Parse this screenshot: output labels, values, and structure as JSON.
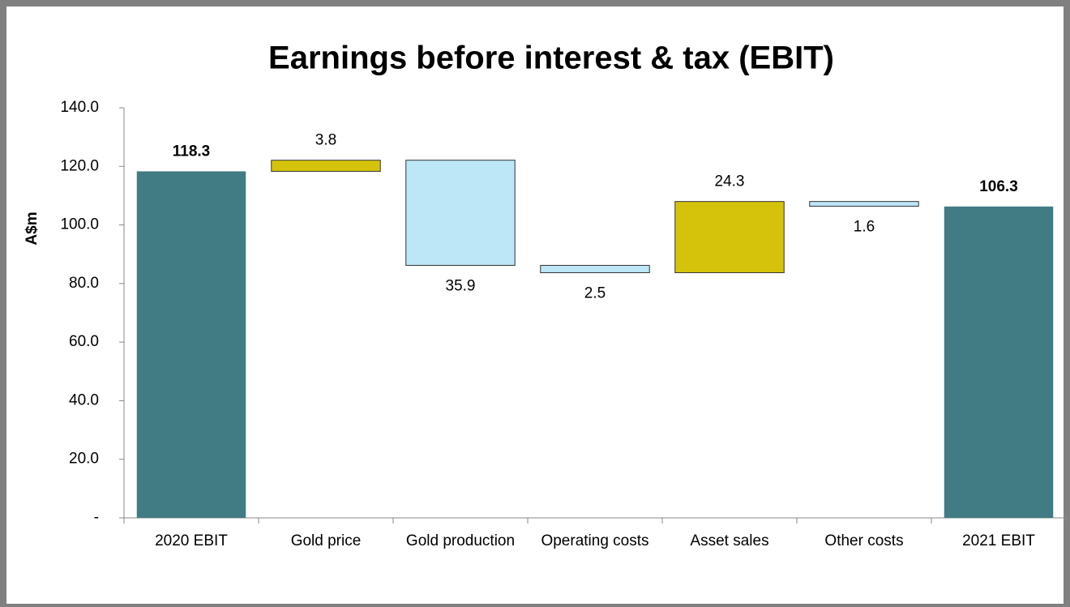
{
  "chart_data": {
    "type": "waterfall",
    "title": "Earnings before interest & tax (EBIT)",
    "y_label": "A$m",
    "categories": [
      "2020 EBIT",
      "Gold price",
      "Gold production",
      "Operating costs",
      "Asset sales",
      "Other costs",
      "2021 EBIT"
    ],
    "values": [
      118.3,
      3.8,
      35.9,
      2.5,
      24.3,
      1.6,
      106.3
    ],
    "kinds": [
      "total",
      "increase",
      "decrease",
      "decrease",
      "increase",
      "decrease",
      "total"
    ],
    "colors": {
      "total": "#417b84",
      "increase": "#d4c30a",
      "decrease": "#bde6f7"
    },
    "ylim": [
      0,
      140
    ],
    "yticks": [
      {
        "value": 0,
        "label": "-"
      },
      {
        "value": 20,
        "label": "20.0"
      },
      {
        "value": 40,
        "label": "40.0"
      },
      {
        "value": 60,
        "label": "60.0"
      },
      {
        "value": 80,
        "label": "80.0"
      },
      {
        "value": 100,
        "label": "100.0"
      },
      {
        "value": 120,
        "label": "120.0"
      },
      {
        "value": 140,
        "label": "140.0"
      }
    ],
    "grid": false
  }
}
